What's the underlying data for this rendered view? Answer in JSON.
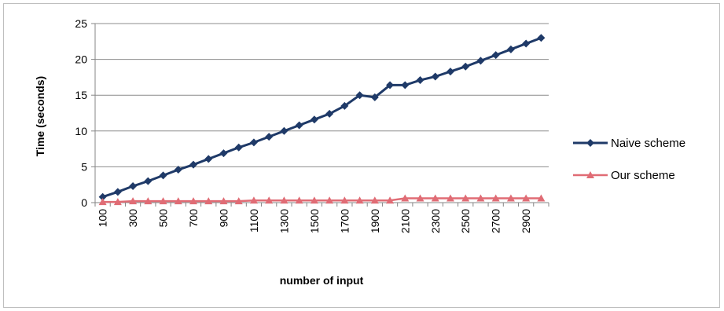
{
  "chart_data": {
    "type": "line",
    "xlabel": "number of input",
    "ylabel": "Time (seconds)",
    "ylim": [
      0,
      25
    ],
    "yticks": [
      "0",
      "5",
      "10",
      "15",
      "20",
      "25"
    ],
    "grid": "horizontal",
    "legend_position": "right",
    "categories": [
      100,
      200,
      300,
      400,
      500,
      600,
      700,
      800,
      900,
      1000,
      1100,
      1200,
      1300,
      1400,
      1500,
      1600,
      1700,
      1800,
      1900,
      2000,
      2100,
      2200,
      2300,
      2400,
      2500,
      2600,
      2700,
      2800,
      2900,
      3000
    ],
    "xtick_labels": [
      "100",
      "300",
      "500",
      "700",
      "900",
      "1100",
      "1300",
      "1500",
      "1700",
      "1900",
      "2100",
      "2300",
      "2500",
      "2700",
      "2900"
    ],
    "series": [
      {
        "name": "Naive scheme",
        "color": "#1f3a68",
        "marker": "diamond",
        "values": [
          0.8,
          1.5,
          2.3,
          3.0,
          3.8,
          4.6,
          5.3,
          6.1,
          6.9,
          7.7,
          8.4,
          9.2,
          10.0,
          10.8,
          11.6,
          12.4,
          13.5,
          15.0,
          14.7,
          16.4,
          16.4,
          17.1,
          17.6,
          18.3,
          19.0,
          19.8,
          20.6,
          21.4,
          22.2,
          23.0
        ]
      },
      {
        "name": "Our scheme",
        "color": "#e06c75",
        "marker": "triangle",
        "values": [
          0.1,
          0.1,
          0.2,
          0.2,
          0.2,
          0.2,
          0.2,
          0.2,
          0.2,
          0.2,
          0.3,
          0.3,
          0.3,
          0.3,
          0.3,
          0.3,
          0.3,
          0.3,
          0.3,
          0.3,
          0.6,
          0.6,
          0.6,
          0.6,
          0.6,
          0.6,
          0.6,
          0.6,
          0.6,
          0.6
        ]
      }
    ]
  }
}
